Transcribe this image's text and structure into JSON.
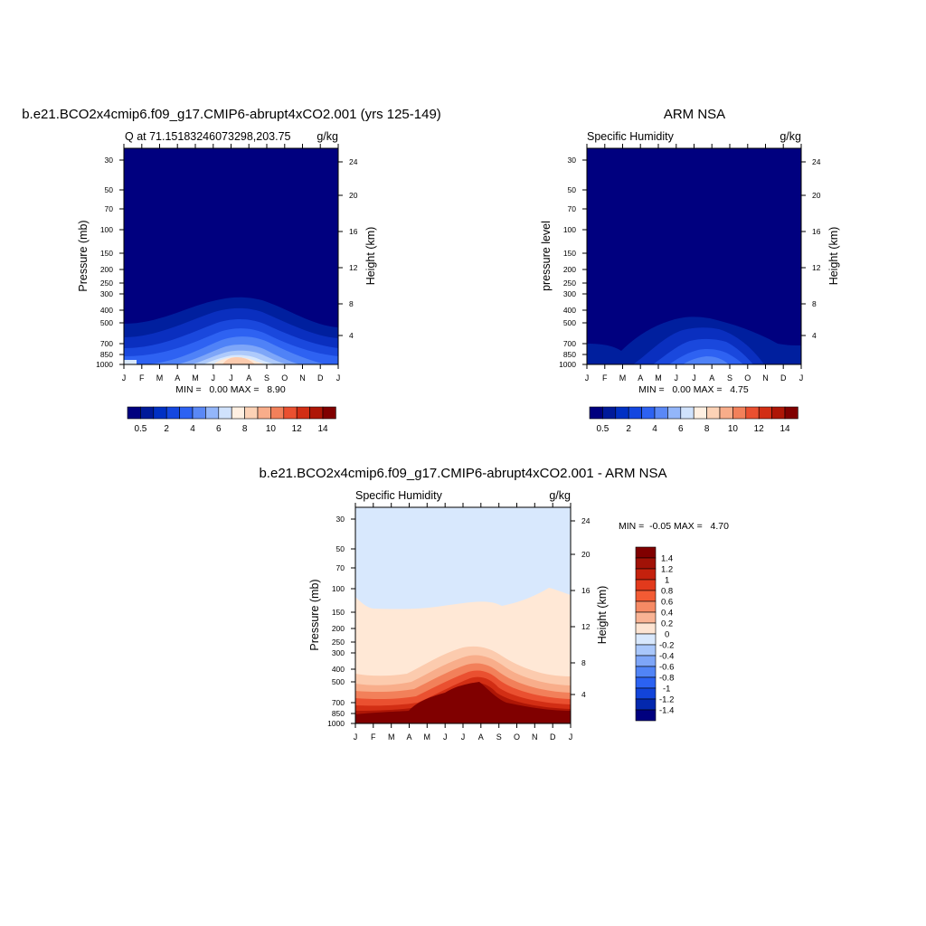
{
  "chart_data": [
    {
      "type": "contour",
      "title": "b.e21.BCO2x4cmip6.f09_g17.CMIP6-abrupt4xCO2.001 (yrs 125-149)",
      "left_label": "Q at 71.15183246073298,203.75",
      "right_label": "g/kg",
      "ylabel": "Pressure (mb)",
      "y2label": "Height (km)",
      "x_ticks": [
        "J",
        "F",
        "M",
        "A",
        "M",
        "J",
        "J",
        "A",
        "S",
        "O",
        "N",
        "D",
        "J"
      ],
      "y_ticks": [
        "30",
        "50",
        "70",
        "100",
        "150",
        "200",
        "250",
        "300",
        "400",
        "500",
        "700",
        "850",
        "1000"
      ],
      "y2_ticks": [
        "24",
        "20",
        "16",
        "12",
        "8",
        "4"
      ],
      "stats_text": "MIN =   0.00 MAX =   8.90",
      "colorbar_labels": [
        "0.5",
        "2",
        "4",
        "6",
        "8",
        "10",
        "12",
        "14"
      ],
      "min": 0.0,
      "max": 8.9
    },
    {
      "type": "contour",
      "title": "ARM NSA",
      "left_label": "Specific Humidity",
      "right_label": "g/kg",
      "ylabel": "pressure level",
      "y2label": "Height (km)",
      "x_ticks": [
        "J",
        "F",
        "M",
        "A",
        "M",
        "J",
        "J",
        "A",
        "S",
        "O",
        "N",
        "D",
        "J"
      ],
      "y_ticks": [
        "30",
        "50",
        "70",
        "100",
        "150",
        "200",
        "250",
        "300",
        "400",
        "500",
        "700",
        "850",
        "1000"
      ],
      "y2_ticks": [
        "24",
        "20",
        "16",
        "12",
        "8",
        "4"
      ],
      "stats_text": "MIN =   0.00 MAX =   4.75",
      "colorbar_labels": [
        "0.5",
        "2",
        "4",
        "6",
        "8",
        "10",
        "12",
        "14"
      ],
      "min": 0.0,
      "max": 4.75
    },
    {
      "type": "contour",
      "title": "b.e21.BCO2x4cmip6.f09_g17.CMIP6-abrupt4xCO2.001 - ARM NSA",
      "left_label": "Specific Humidity",
      "right_label": "g/kg",
      "ylabel": "Pressure (mb)",
      "y2label": "Height (km)",
      "x_ticks": [
        "J",
        "F",
        "M",
        "A",
        "M",
        "J",
        "J",
        "A",
        "S",
        "O",
        "N",
        "D",
        "J"
      ],
      "y_ticks": [
        "30",
        "50",
        "70",
        "100",
        "150",
        "200",
        "250",
        "300",
        "400",
        "500",
        "700",
        "850",
        "1000"
      ],
      "y2_ticks": [
        "24",
        "20",
        "16",
        "12",
        "8",
        "4"
      ],
      "stats_text": "MIN =  -0.05 MAX =   4.70",
      "colorbar_labels": [
        "1.4",
        "1.2",
        "1",
        "0.8",
        "0.6",
        "0.4",
        "0.2",
        "0",
        "-0.2",
        "-0.4",
        "-0.6",
        "-0.8",
        "-1",
        "-1.2",
        "-1.4"
      ],
      "min": -0.05,
      "max": 4.7
    }
  ]
}
